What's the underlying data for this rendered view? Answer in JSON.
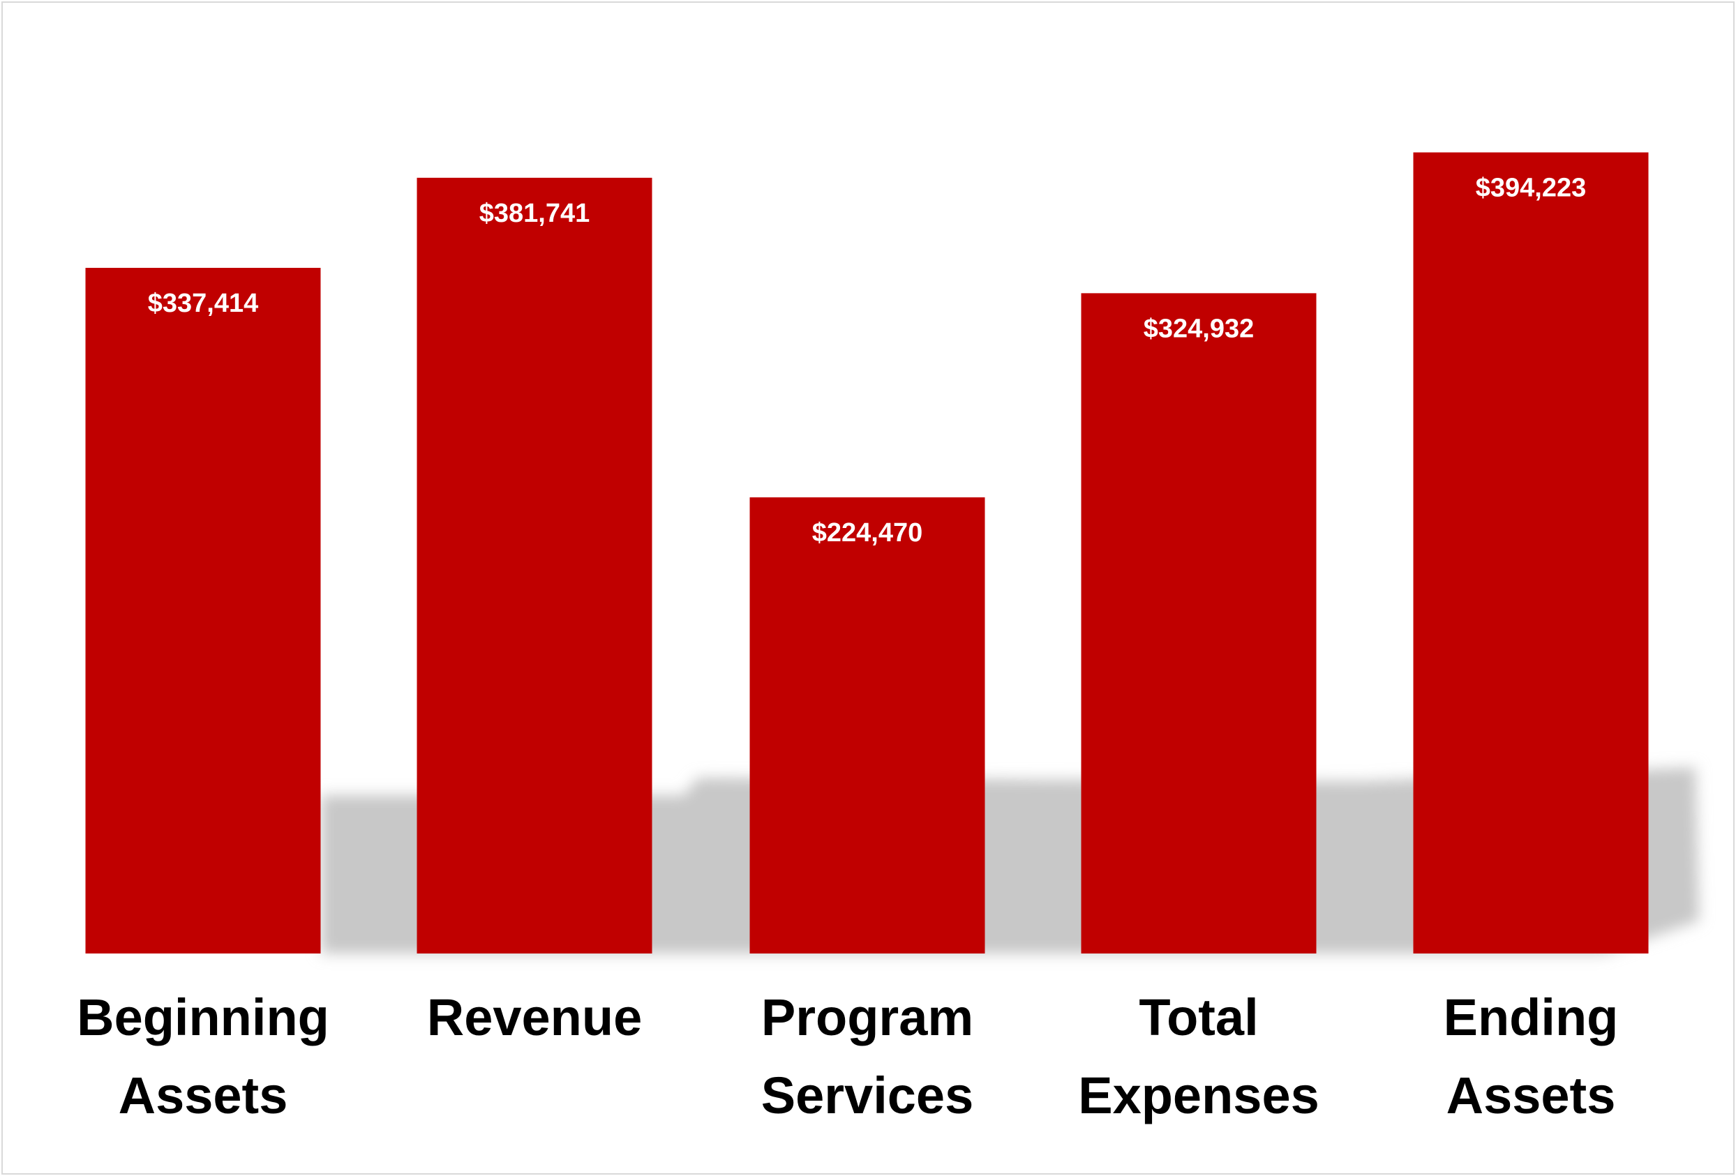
{
  "chart_data": {
    "type": "bar",
    "categories": [
      "Beginning Assets",
      "Revenue",
      "Program Services",
      "Total Expenses",
      "Ending Assets"
    ],
    "values": [
      337414,
      381741,
      224470,
      324932,
      394223
    ],
    "value_labels": [
      "$337,414",
      "$381,741",
      "$224,470",
      "$324,932",
      "$394,223"
    ],
    "color": "#c00000",
    "ylim": [
      0,
      450000
    ]
  }
}
